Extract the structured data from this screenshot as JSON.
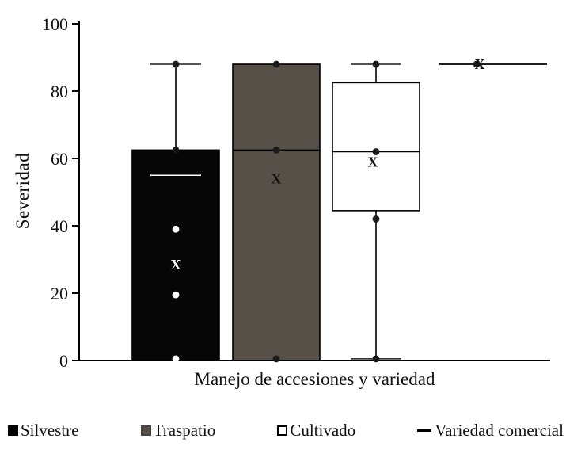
{
  "chart_data": {
    "type": "boxplot",
    "title": "",
    "xlabel": "Manejo de accesiones y variedad",
    "ylabel": "Severidad",
    "ylim": [
      0,
      100
    ],
    "yticks": [
      0,
      20,
      40,
      60,
      80,
      100
    ],
    "grid": false,
    "legend_position": "bottom",
    "groups": [
      {
        "name": "Silvestre",
        "fill": "#060606",
        "box": {
          "low": 0,
          "high": 62.5
        },
        "median": null,
        "whiskers": [
          {
            "from": 62.5,
            "to": 88
          }
        ],
        "caps": [
          {
            "v": 88,
            "color": "#1a1a1a"
          },
          {
            "v": 55,
            "color": "#ffffff"
          }
        ],
        "dots": [
          {
            "v": 88,
            "color": "#1a1a1a"
          },
          {
            "v": 62.5,
            "color": "#1a1a1a"
          },
          {
            "v": 39,
            "color": "#ffffff"
          },
          {
            "v": 19.5,
            "color": "#ffffff"
          },
          {
            "v": 0.5,
            "color": "#ffffff"
          }
        ],
        "xmark": {
          "v": 28.5,
          "color": "#ffffff",
          "dx": 0
        }
      },
      {
        "name": "Traspatio",
        "fill": "#575049",
        "box": {
          "low": 0,
          "high": 88
        },
        "median": 62.5,
        "whiskers": [],
        "caps": [],
        "dots": [
          {
            "v": 88,
            "color": "#1a1a1a"
          },
          {
            "v": 62.5,
            "color": "#1a1a1a"
          },
          {
            "v": 0.5,
            "color": "#1a1a1a"
          }
        ],
        "xmark": {
          "v": 54,
          "color": "#111111",
          "dx": 0
        }
      },
      {
        "name": "Cultivado",
        "fill": "#ffffff",
        "box": {
          "low": 44.5,
          "high": 82.5
        },
        "median": 62,
        "whiskers": [
          {
            "from": 82.5,
            "to": 88
          },
          {
            "from": 44.5,
            "to": 0.5
          }
        ],
        "caps": [
          {
            "v": 88,
            "color": "#1a1a1a"
          },
          {
            "v": 0.5,
            "color": "#1a1a1a"
          }
        ],
        "dots": [
          {
            "v": 88,
            "color": "#1a1a1a"
          },
          {
            "v": 62,
            "color": "#1a1a1a"
          },
          {
            "v": 42,
            "color": "#1a1a1a"
          },
          {
            "v": 0.5,
            "color": "#1a1a1a"
          }
        ],
        "xmark": {
          "v": 59,
          "color": "#111111",
          "dx": -4
        }
      },
      {
        "name": "Variedad comercial",
        "fill": null,
        "box": null,
        "median": null,
        "whiskers": [],
        "caps": [],
        "hline": {
          "v": 88,
          "x1off": -46,
          "x2off": 90
        },
        "dots": [
          {
            "v": 88,
            "color": "#1a1a1a",
            "dx": 1
          }
        ],
        "xmark": {
          "v": 88,
          "color": "#111111",
          "dx": 5
        }
      }
    ]
  },
  "legend": {
    "items": [
      {
        "label": "Silvestre",
        "swatch": "filled",
        "fill": "#000000",
        "border": "#000000"
      },
      {
        "label": "Traspatio",
        "swatch": "filled",
        "fill": "#575049",
        "border": "#4a443f"
      },
      {
        "label": "Cultivado",
        "swatch": "open",
        "fill": "#ffffff",
        "border": "#000000"
      },
      {
        "label": "Variedad comercial",
        "swatch": "dash",
        "color": "#000000"
      }
    ]
  }
}
